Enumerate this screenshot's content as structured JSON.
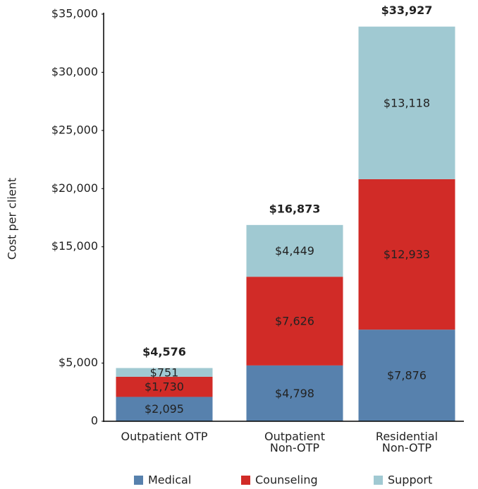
{
  "chart_data": {
    "type": "stacked_bar",
    "y_label": "Cost per client",
    "categories": [
      "Outpatient OTP",
      "Outpatient\nNon-OTP",
      "Residential\nNon-OTP"
    ],
    "series": [
      {
        "name": "Medical",
        "color": "#5781ad",
        "values": [
          2095,
          4798,
          7876
        ],
        "value_labels": [
          "$2,095",
          "$4,798",
          "$7,876"
        ]
      },
      {
        "name": "Counseling",
        "color": "#d12b27",
        "values": [
          1730,
          7626,
          12933
        ],
        "value_labels": [
          "$1,730",
          "$7,626",
          "$12,933"
        ]
      },
      {
        "name": "Support",
        "color": "#a0c9d2",
        "values": [
          751,
          4449,
          13118
        ],
        "value_labels": [
          "$751",
          "$4,449",
          "$13,118"
        ]
      }
    ],
    "totals": [
      4576,
      16873,
      33927
    ],
    "total_labels": [
      "$4,576",
      "$16,873",
      "$33,927"
    ],
    "ylim": [
      0,
      35000
    ],
    "yticks": [
      0,
      {
        "value": 5000,
        "label": "$5,000"
      },
      {
        "value": 15000,
        "label": "$15,000"
      },
      {
        "value": 20000,
        "label": "$20,000"
      },
      {
        "value": 25000,
        "label": "$25,000"
      },
      {
        "value": 30000,
        "label": "$30,000"
      },
      {
        "value": 35000,
        "label": "$35,000"
      }
    ],
    "legend": "bottom"
  }
}
